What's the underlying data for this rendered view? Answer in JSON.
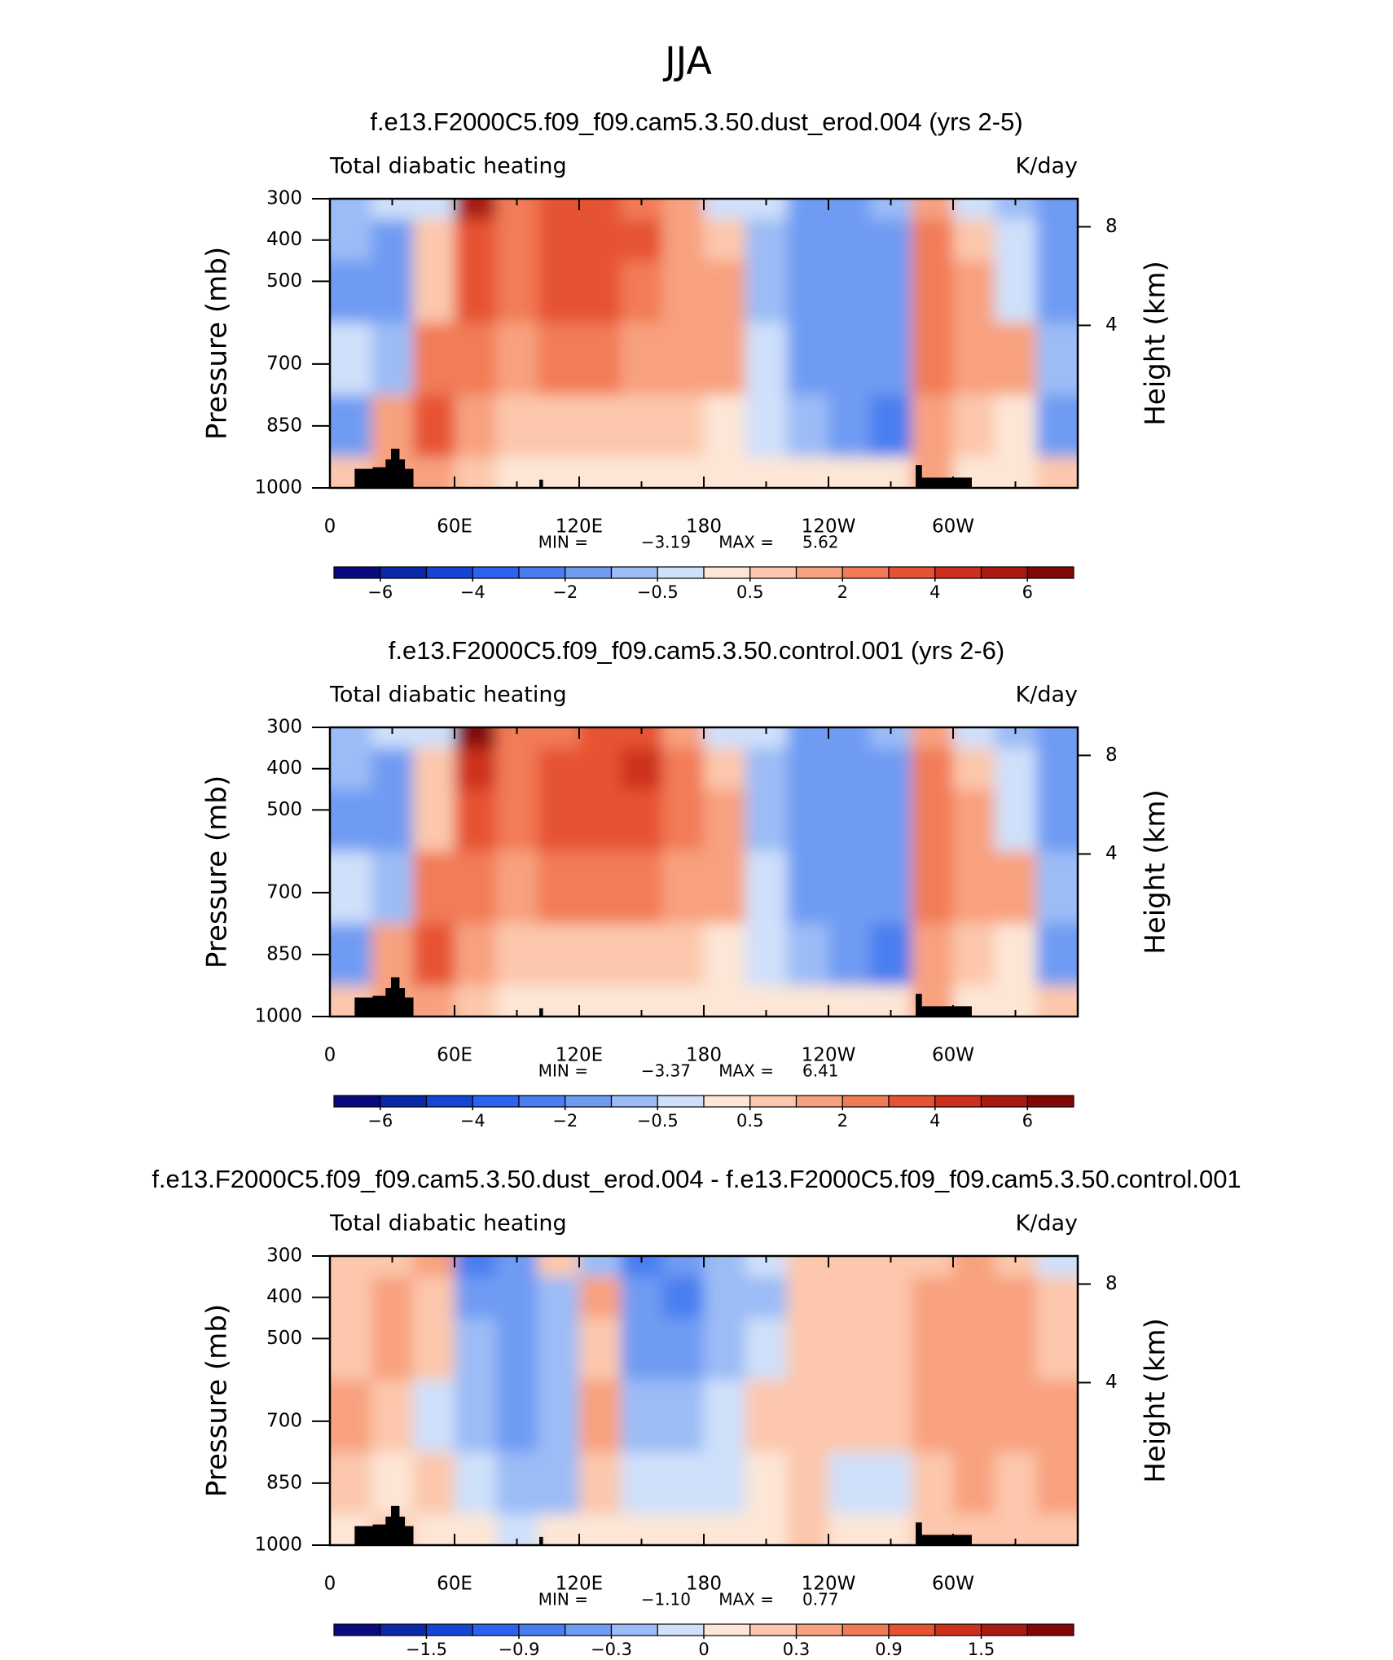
{
  "figure_title": "JJA",
  "chart_data": [
    {
      "type": "contour",
      "title": "f.e13.F2000C5.f09_f09.cam5.3.50.dust_erod.004 (yrs 2-5)",
      "subtitle": "Total diabatic heating",
      "units": "K/day",
      "ylabel": "Pressure (mb)",
      "y2label": "Height (km)",
      "xlim": [
        0,
        360
      ],
      "xticks": [
        0,
        {
          "value": 60,
          "label": "60E"
        },
        {
          "value": 120,
          "label": "120E"
        },
        180,
        {
          "value": 240,
          "label": "120W"
        },
        {
          "value": 300,
          "label": "60W"
        }
      ],
      "ylim": [
        1000,
        300
      ],
      "yticks": [
        300,
        400,
        500,
        700,
        850,
        1000
      ],
      "y2ticks": [
        4,
        8
      ],
      "x": [
        10,
        30,
        50,
        70,
        90,
        110,
        130,
        150,
        170,
        190,
        210,
        230,
        250,
        270,
        290,
        310,
        330,
        350
      ],
      "y": [
        300,
        400,
        500,
        700,
        850,
        1000
      ],
      "z": [
        [
          -1,
          -1,
          -1.5,
          -0.5,
          -1.5,
          0.5
        ],
        [
          -0.5,
          -1.5,
          -1.5,
          -1,
          1.5,
          1
        ],
        [
          -0.5,
          0.5,
          0.5,
          2,
          3,
          1
        ],
        [
          5,
          3.5,
          3,
          2,
          1,
          0.5
        ],
        [
          2,
          2,
          2,
          1.5,
          0.5,
          0.3
        ],
        [
          3,
          3,
          3,
          2,
          0.5,
          0.3
        ],
        [
          3,
          3.5,
          3,
          2,
          0.8,
          0.3
        ],
        [
          2.5,
          3,
          2.5,
          1.5,
          0.5,
          0.3
        ],
        [
          1.5,
          1.5,
          1.5,
          1.5,
          0.5,
          0.3
        ],
        [
          -0.3,
          0.5,
          1,
          1,
          0.3,
          0.3
        ],
        [
          -0.5,
          -1,
          -1,
          -0.5,
          -0.3,
          0.3
        ],
        [
          -2,
          -2,
          -2,
          -1.5,
          -1,
          0.3
        ],
        [
          -2,
          -2,
          -2,
          -2,
          -2,
          0.3
        ],
        [
          -1,
          -1.5,
          -1.5,
          -2,
          -2.5,
          0.3
        ],
        [
          1,
          2,
          2.5,
          2,
          1.5,
          1
        ],
        [
          -0.5,
          0.5,
          1,
          1,
          0.5,
          0.3
        ],
        [
          -1,
          -0.5,
          -0.3,
          1,
          0.3,
          0.3
        ],
        [
          -1.5,
          -1.5,
          -1.5,
          -1,
          -1.5,
          0.5
        ]
      ],
      "levels": [
        -6,
        -5,
        -4,
        -3,
        -2,
        -1,
        -0.5,
        0,
        0.5,
        1,
        2,
        3,
        4,
        5,
        6
      ],
      "colors": [
        "#0a0a80",
        "#0b28a8",
        "#1445d4",
        "#2c62ee",
        "#4a7ef0",
        "#6f9bf3",
        "#9bbcf6",
        "#cfe0fa",
        "#fde6d6",
        "#fcc7ac",
        "#f8a17f",
        "#f27b57",
        "#e65333",
        "#cd301c",
        "#a91b12",
        "#820808"
      ],
      "cbar_ticks": [
        {
          "value": -6,
          "label": "−6"
        },
        {
          "value": -4,
          "label": "−4"
        },
        {
          "value": -2,
          "label": "−2"
        },
        {
          "value": -0.5,
          "label": "−0.5"
        },
        0.5,
        2,
        4,
        6
      ],
      "min_label": "MIN =",
      "min": {
        "value": -3.19,
        "label": "−3.19"
      },
      "max_label": "MAX =",
      "max": 5.62
    },
    {
      "type": "contour",
      "title": "f.e13.F2000C5.f09_f09.cam5.3.50.control.001 (yrs 2-6)",
      "subtitle": "Total diabatic heating",
      "units": "K/day",
      "ylabel": "Pressure (mb)",
      "y2label": "Height (km)",
      "xlim": [
        0,
        360
      ],
      "xticks": [
        0,
        {
          "value": 60,
          "label": "60E"
        },
        {
          "value": 120,
          "label": "120E"
        },
        180,
        {
          "value": 240,
          "label": "120W"
        },
        {
          "value": 300,
          "label": "60W"
        }
      ],
      "ylim": [
        1000,
        300
      ],
      "yticks": [
        300,
        400,
        500,
        700,
        850,
        1000
      ],
      "y2ticks": [
        4,
        8
      ],
      "x": [
        10,
        30,
        50,
        70,
        90,
        110,
        130,
        150,
        170,
        190,
        210,
        230,
        250,
        270,
        290,
        310,
        330,
        350
      ],
      "y": [
        300,
        400,
        500,
        700,
        850,
        1000
      ],
      "z": [
        [
          -1,
          -1,
          -1.5,
          -0.5,
          -2,
          0.5
        ],
        [
          -0.5,
          -1.5,
          -1.5,
          -1,
          1.5,
          1
        ],
        [
          -0.5,
          0.5,
          0.5,
          2,
          3,
          1
        ],
        [
          6,
          4,
          3,
          2,
          1,
          0.5
        ],
        [
          2,
          2,
          2,
          1.5,
          0.5,
          0.3
        ],
        [
          2.5,
          3,
          3,
          2,
          0.5,
          0.3
        ],
        [
          3,
          3.5,
          3,
          2,
          0.8,
          0.3
        ],
        [
          3.5,
          4,
          3.5,
          2,
          0.5,
          0.3
        ],
        [
          1.5,
          2,
          2,
          1.5,
          0.5,
          0.3
        ],
        [
          -0.3,
          0.5,
          1,
          1,
          0.3,
          0.3
        ],
        [
          -0.5,
          -1,
          -1,
          -0.5,
          -0.3,
          0.3
        ],
        [
          -2,
          -2,
          -2,
          -1.5,
          -1,
          0.3
        ],
        [
          -2,
          -2,
          -2,
          -2,
          -2,
          0.3
        ],
        [
          -1,
          -1.5,
          -1.5,
          -2,
          -2.5,
          0.3
        ],
        [
          1,
          2,
          2.5,
          2,
          1.5,
          1
        ],
        [
          -0.5,
          0.5,
          1,
          1,
          0.5,
          0.3
        ],
        [
          -1,
          -0.5,
          -0.3,
          1,
          0.3,
          0.3
        ],
        [
          -1.5,
          -1.5,
          -1.5,
          -1,
          -2,
          0.5
        ]
      ],
      "levels": [
        -6,
        -5,
        -4,
        -3,
        -2,
        -1,
        -0.5,
        0,
        0.5,
        1,
        2,
        3,
        4,
        5,
        6
      ],
      "colors": [
        "#0a0a80",
        "#0b28a8",
        "#1445d4",
        "#2c62ee",
        "#4a7ef0",
        "#6f9bf3",
        "#9bbcf6",
        "#cfe0fa",
        "#fde6d6",
        "#fcc7ac",
        "#f8a17f",
        "#f27b57",
        "#e65333",
        "#cd301c",
        "#a91b12",
        "#820808"
      ],
      "cbar_ticks": [
        {
          "value": -6,
          "label": "−6"
        },
        {
          "value": -4,
          "label": "−4"
        },
        {
          "value": -2,
          "label": "−2"
        },
        {
          "value": -0.5,
          "label": "−0.5"
        },
        0.5,
        2,
        4,
        6
      ],
      "min_label": "MIN =",
      "min": {
        "value": -3.37,
        "label": "−3.37"
      },
      "max_label": "MAX =",
      "max": 6.41
    },
    {
      "type": "contour",
      "title": "f.e13.F2000C5.f09_f09.cam5.3.50.dust_erod.004 - f.e13.F2000C5.f09_f09.cam5.3.50.control.001",
      "subtitle": "Total diabatic heating",
      "units": "K/day",
      "ylabel": "Pressure (mb)",
      "y2label": "Height (km)",
      "xlim": [
        0,
        360
      ],
      "xticks": [
        0,
        {
          "value": 60,
          "label": "60E"
        },
        {
          "value": 120,
          "label": "120E"
        },
        180,
        {
          "value": 240,
          "label": "120W"
        },
        {
          "value": 300,
          "label": "60W"
        }
      ],
      "ylim": [
        1000,
        300
      ],
      "yticks": [
        300,
        400,
        500,
        700,
        850,
        1000
      ],
      "y2ticks": [
        4,
        8
      ],
      "x": [
        10,
        30,
        50,
        70,
        90,
        110,
        130,
        150,
        170,
        190,
        210,
        230,
        250,
        270,
        290,
        310,
        330,
        350
      ],
      "y": [
        300,
        400,
        500,
        700,
        850,
        1000
      ],
      "z": [
        [
          0.1,
          0.2,
          0.1,
          0.3,
          0.1,
          0
        ],
        [
          0.2,
          0.3,
          0.4,
          0.2,
          0,
          0.1
        ],
        [
          0.3,
          0.1,
          0.2,
          -0.1,
          0.1,
          0
        ],
        [
          -0.9,
          -0.6,
          -0.3,
          -0.3,
          -0.1,
          0
        ],
        [
          -0.5,
          -0.6,
          -0.6,
          -0.6,
          -0.3,
          -0.1
        ],
        [
          0.1,
          -0.3,
          -0.3,
          -0.3,
          -0.3,
          0
        ],
        [
          -0.3,
          0.3,
          0.2,
          0.3,
          0.1,
          0
        ],
        [
          -0.9,
          -0.6,
          -0.6,
          -0.3,
          -0.1,
          0
        ],
        [
          -0.6,
          -0.9,
          -0.6,
          -0.3,
          -0.1,
          0
        ],
        [
          -0.3,
          -0.3,
          -0.3,
          -0.1,
          -0.1,
          0
        ],
        [
          -0.1,
          -0.2,
          -0.1,
          0.1,
          0,
          0
        ],
        [
          0.2,
          0.1,
          0.1,
          0.1,
          0.1,
          0.1
        ],
        [
          0.2,
          0.2,
          0.2,
          0.1,
          -0.1,
          0
        ],
        [
          0.1,
          0.2,
          0.2,
          0.1,
          -0.1,
          0
        ],
        [
          0.2,
          0.4,
          0.4,
          0.3,
          0.2,
          0.1
        ],
        [
          0.3,
          0.4,
          0.5,
          0.4,
          0.3,
          0.1
        ],
        [
          0.2,
          0.3,
          0.3,
          0.3,
          0.2,
          0.1
        ],
        [
          -0.1,
          0.1,
          0.2,
          0.3,
          0.3,
          0.1
        ]
      ],
      "levels": [
        -1.8,
        -1.5,
        -1.2,
        -0.9,
        -0.6,
        -0.3,
        -0.1,
        0,
        0.1,
        0.3,
        0.6,
        0.9,
        1.2,
        1.5,
        1.8
      ],
      "colors": [
        "#0a0a80",
        "#0b28a8",
        "#1445d4",
        "#2c62ee",
        "#4a7ef0",
        "#6f9bf3",
        "#9bbcf6",
        "#cfe0fa",
        "#fde6d6",
        "#fcc7ac",
        "#f8a17f",
        "#f27b57",
        "#e65333",
        "#cd301c",
        "#a91b12",
        "#820808"
      ],
      "cbar_ticks": [
        {
          "value": -1.5,
          "label": "−1.5"
        },
        {
          "value": -0.9,
          "label": "−0.9"
        },
        {
          "value": -0.3,
          "label": "−0.3"
        },
        0,
        0.3,
        0.9,
        1.5
      ],
      "min_label": "MIN =",
      "min": {
        "value": -1.1,
        "label": "−1.10"
      },
      "max_label": "MAX =",
      "max": 0.77
    }
  ]
}
